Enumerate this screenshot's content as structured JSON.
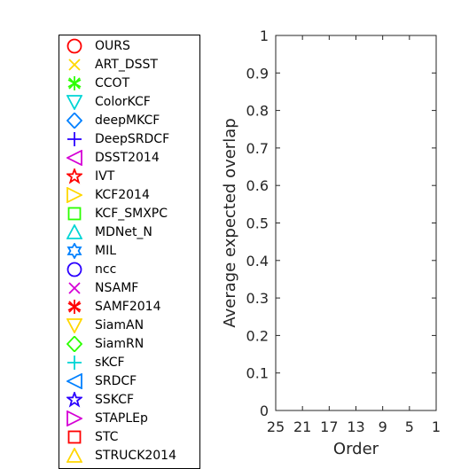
{
  "chart_data": {
    "type": "line",
    "xlabel": "Order",
    "ylabel": "Average expected overlap",
    "ylim": [
      0,
      1
    ],
    "x_ticks": [
      "25",
      "21",
      "17",
      "13",
      "9",
      "5",
      "1"
    ],
    "y_ticks": [
      "0",
      "0.1",
      "0.2",
      "0.3",
      "0.4",
      "0.5",
      "0.6",
      "0.7",
      "0.8",
      "0.9",
      "1"
    ],
    "grid": false,
    "legend_position": "left",
    "series": [
      {
        "name": "OURS",
        "marker": "circle",
        "color": "#ff0000"
      },
      {
        "name": "ART_DSST",
        "marker": "x",
        "color": "#ffd700"
      },
      {
        "name": "CCOT",
        "marker": "asterisk",
        "color": "#2bff00"
      },
      {
        "name": "ColorKCF",
        "marker": "triangle-down",
        "color": "#00d5d5"
      },
      {
        "name": "deepMKCF",
        "marker": "diamond",
        "color": "#0080ff"
      },
      {
        "name": "DeepSRDCF",
        "marker": "plus",
        "color": "#2b00ff"
      },
      {
        "name": "DSST2014",
        "marker": "triangle-left",
        "color": "#d500d5"
      },
      {
        "name": "IVT",
        "marker": "pentagram",
        "color": "#ff0000"
      },
      {
        "name": "KCF2014",
        "marker": "triangle-right",
        "color": "#ffd700"
      },
      {
        "name": "KCF_SMXPC",
        "marker": "square",
        "color": "#2bff00"
      },
      {
        "name": "MDNet_N",
        "marker": "triangle-up",
        "color": "#00d5d5"
      },
      {
        "name": "MIL",
        "marker": "hexagram",
        "color": "#0080ff"
      },
      {
        "name": "ncc",
        "marker": "circle",
        "color": "#2b00ff"
      },
      {
        "name": "NSAMF",
        "marker": "x",
        "color": "#d500d5"
      },
      {
        "name": "SAMF2014",
        "marker": "asterisk",
        "color": "#ff0000"
      },
      {
        "name": "SiamAN",
        "marker": "triangle-down",
        "color": "#ffd700"
      },
      {
        "name": "SiamRN",
        "marker": "diamond",
        "color": "#2bff00"
      },
      {
        "name": "sKCF",
        "marker": "plus",
        "color": "#00d5d5"
      },
      {
        "name": "SRDCF",
        "marker": "triangle-left",
        "color": "#0080ff"
      },
      {
        "name": "SSKCF",
        "marker": "pentagram",
        "color": "#2b00ff"
      },
      {
        "name": "STAPLEp",
        "marker": "triangle-right",
        "color": "#d500d5"
      },
      {
        "name": "STC",
        "marker": "square",
        "color": "#ff0000"
      },
      {
        "name": "STRUCK2014",
        "marker": "triangle-up",
        "color": "#ffd700"
      }
    ]
  }
}
